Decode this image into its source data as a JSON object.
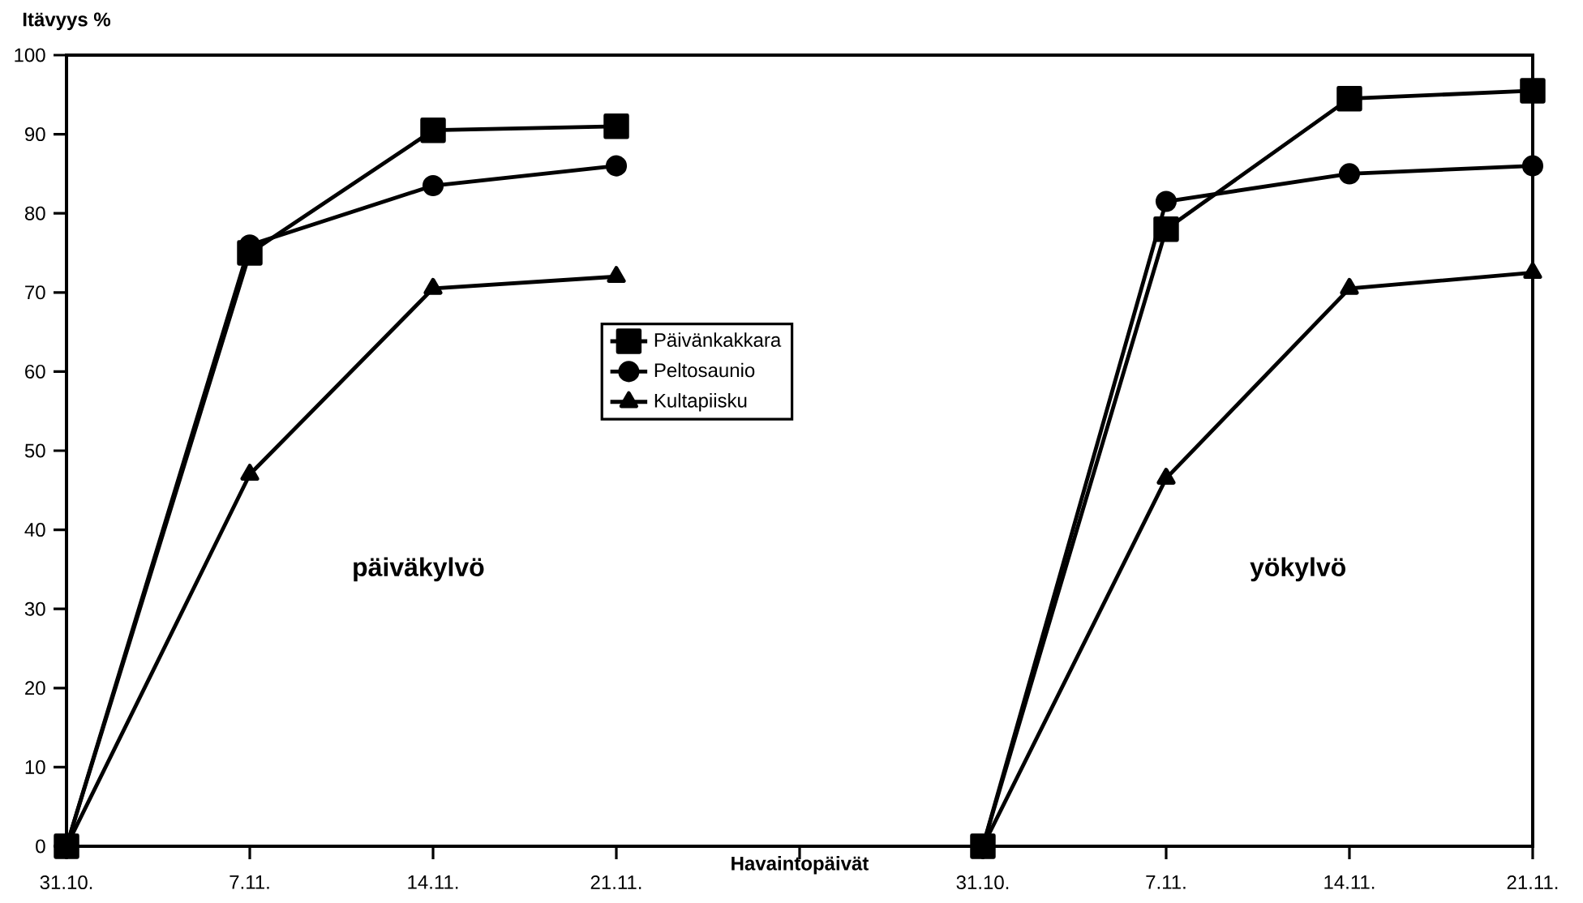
{
  "chart_data": {
    "type": "line",
    "ylabel": "Itävyys %",
    "xlabel": "Havaintopäivät",
    "categories": [
      "31.10.",
      "7.11.",
      "14.11.",
      "21.11.",
      null,
      "31.10.",
      "7.11.",
      "14.11.",
      "21.11."
    ],
    "series": [
      {
        "name": "Päivänkakkara",
        "color": "#000000",
        "marker": "square",
        "values": [
          0,
          75,
          90.5,
          91,
          null,
          0,
          78,
          94.5,
          95.5
        ]
      },
      {
        "name": "Peltosaunio",
        "color": "#000000",
        "marker": "circle",
        "values": [
          0,
          76,
          83.5,
          86,
          null,
          0,
          81.5,
          85,
          86
        ]
      },
      {
        "name": "Kultapiisku",
        "color": "#000000",
        "marker": "triangle",
        "values": [
          0,
          47,
          70.5,
          72,
          null,
          0,
          46.5,
          70.5,
          72.5
        ]
      }
    ],
    "ylim": [
      0,
      100
    ],
    "yticks": [
      0,
      10,
      20,
      30,
      40,
      50,
      60,
      70,
      80,
      90,
      100
    ],
    "annotations": [
      "päiväkylvö",
      "yökylvö"
    ],
    "legend": "center",
    "grid": false,
    "line_style": "solid"
  }
}
